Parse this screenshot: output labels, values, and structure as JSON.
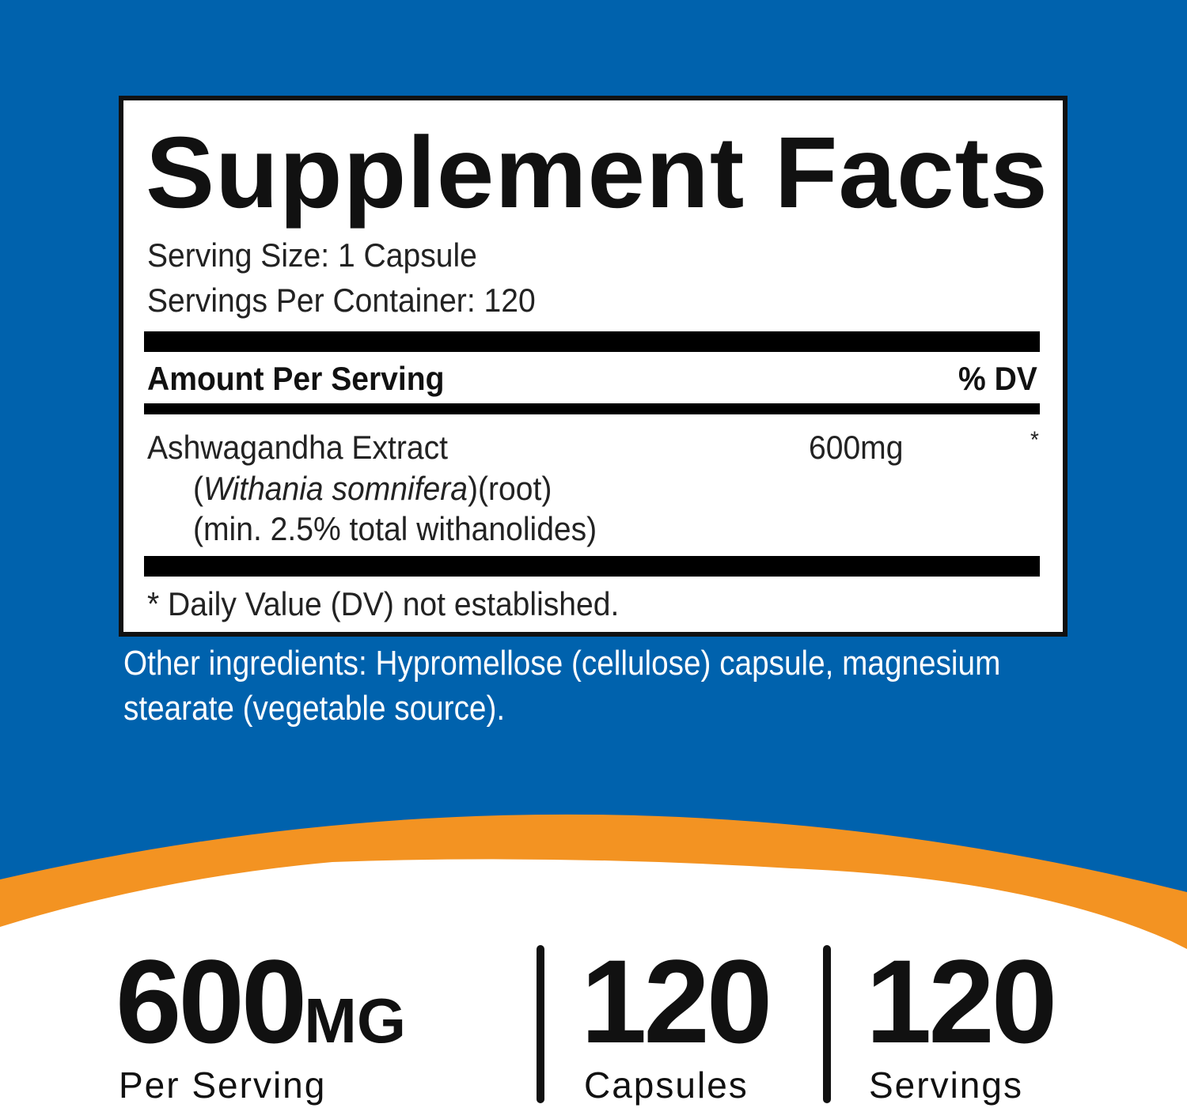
{
  "colors": {
    "background": "#0062ad",
    "accent": "#f39322",
    "panel": "#ffffff",
    "text": "#111111"
  },
  "facts": {
    "title": "Supplement Facts",
    "serving_size": "Serving Size: 1 Capsule",
    "servings_per_container": "Servings Per Container: 120",
    "amount_header": "Amount Per Serving",
    "dv_header": "% DV",
    "ingredient": {
      "name": "Ashwagandha Extract",
      "latin_open": "(",
      "latin": "Withania somnifera",
      "latin_close": ")(root)",
      "note": "(min. 2.5% total withanolides)",
      "amount": "600mg",
      "dv": "*"
    },
    "footnote": "* Daily Value (DV) not established."
  },
  "other_ingredients": "Other ingredients: Hypromellose (cellulose) capsule, magnesium stearate (vegetable source).",
  "stats": [
    {
      "value": "600",
      "unit": "MG",
      "label": "Per Serving"
    },
    {
      "value": "120",
      "unit": "",
      "label": "Capsules"
    },
    {
      "value": "120",
      "unit": "",
      "label": "Servings"
    }
  ]
}
